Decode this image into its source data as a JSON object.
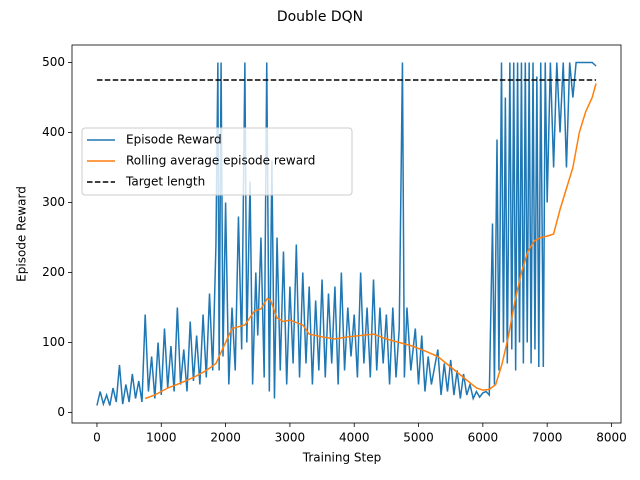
{
  "chart_data": {
    "type": "line",
    "title": "Double DQN",
    "x_label": "Training Step",
    "y_label": "Episode Reward",
    "xlim": [
      -388,
      8148
    ],
    "ylim": [
      -15,
      525
    ],
    "xticks": [
      0,
      1000,
      2000,
      3000,
      4000,
      5000,
      6000,
      7000,
      8000
    ],
    "yticks": [
      0,
      100,
      200,
      300,
      400,
      500
    ],
    "legend": "upper left",
    "series": [
      {
        "name": "Episode Reward",
        "color": "#1f77b4",
        "dash": "solid",
        "x": [
          0,
          50,
          100,
          150,
          200,
          250,
          300,
          350,
          400,
          450,
          500,
          550,
          600,
          650,
          700,
          750,
          800,
          850,
          900,
          950,
          1000,
          1050,
          1100,
          1150,
          1200,
          1250,
          1300,
          1350,
          1400,
          1450,
          1500,
          1550,
          1600,
          1650,
          1700,
          1750,
          1800,
          1850,
          1880,
          1900,
          1930,
          1960,
          2000,
          2050,
          2100,
          2150,
          2200,
          2250,
          2300,
          2330,
          2380,
          2420,
          2470,
          2500,
          2550,
          2600,
          2640,
          2680,
          2720,
          2760,
          2800,
          2850,
          2900,
          2950,
          3000,
          3050,
          3100,
          3150,
          3200,
          3250,
          3300,
          3350,
          3400,
          3450,
          3500,
          3550,
          3600,
          3650,
          3700,
          3750,
          3800,
          3850,
          3900,
          3950,
          4000,
          4050,
          4100,
          4150,
          4200,
          4250,
          4300,
          4350,
          4400,
          4450,
          4500,
          4550,
          4600,
          4650,
          4700,
          4750,
          4780,
          4820,
          4880,
          4950,
          5000,
          5050,
          5100,
          5150,
          5200,
          5300,
          5350,
          5400,
          5450,
          5500,
          5550,
          5600,
          5650,
          5700,
          5750,
          5800,
          5850,
          5900,
          5950,
          6000,
          6050,
          6100,
          6150,
          6180,
          6220,
          6250,
          6290,
          6320,
          6350,
          6380,
          6420,
          6450,
          6480,
          6510,
          6540,
          6570,
          6600,
          6630,
          6660,
          6690,
          6720,
          6750,
          6780,
          6810,
          6840,
          6870,
          6900,
          6940,
          6970,
          7000,
          7050,
          7100,
          7150,
          7200,
          7250,
          7300,
          7350,
          7400,
          7450,
          7500,
          7600,
          7700,
          7760
        ],
        "values": [
          10,
          30,
          12,
          25,
          10,
          35,
          15,
          68,
          12,
          40,
          15,
          55,
          20,
          45,
          15,
          140,
          30,
          80,
          20,
          100,
          25,
          120,
          35,
          95,
          30,
          150,
          40,
          90,
          30,
          130,
          45,
          110,
          40,
          140,
          50,
          170,
          60,
          240,
          500,
          60,
          500,
          80,
          300,
          40,
          150,
          60,
          280,
          90,
          500,
          100,
          330,
          40,
          200,
          110,
          250,
          50,
          500,
          30,
          360,
          20,
          250,
          60,
          230,
          40,
          180,
          70,
          240,
          50,
          200,
          70,
          180,
          40,
          160,
          60,
          190,
          50,
          170,
          70,
          180,
          40,
          200,
          60,
          150,
          80,
          140,
          50,
          200,
          70,
          150,
          50,
          190,
          60,
          150,
          70,
          140,
          40,
          150,
          50,
          120,
          500,
          50,
          150,
          60,
          120,
          40,
          110,
          30,
          80,
          40,
          90,
          25,
          70,
          30,
          75,
          25,
          60,
          20,
          55,
          25,
          40,
          20,
          30,
          22,
          28,
          30,
          25,
          270,
          40,
          390,
          60,
          500,
          100,
          450,
          70,
          500,
          90,
          500,
          60,
          500,
          100,
          500,
          70,
          500,
          100,
          500,
          70,
          500,
          90,
          480,
          65,
          500,
          65,
          500,
          300,
          500,
          350,
          500,
          400,
          500,
          350,
          500,
          450,
          500,
          500,
          500,
          500,
          495
        ]
      },
      {
        "name": "Rolling average episode reward",
        "color": "#ff7f0e",
        "dash": "solid",
        "x": [
          750,
          900,
          1100,
          1300,
          1500,
          1700,
          1850,
          1950,
          2100,
          2300,
          2450,
          2550,
          2650,
          2700,
          2800,
          2900,
          3000,
          3200,
          3300,
          3500,
          3700,
          3900,
          4100,
          4300,
          4500,
          4700,
          4900,
          5100,
          5300,
          5500,
          5700,
          5900,
          6000,
          6100,
          6200,
          6300,
          6400,
          6500,
          6600,
          6700,
          6800,
          6900,
          7000,
          7100,
          7200,
          7300,
          7400,
          7500,
          7600,
          7700,
          7760
        ],
        "values": [
          20,
          25,
          35,
          42,
          50,
          60,
          70,
          90,
          120,
          125,
          145,
          148,
          163,
          160,
          135,
          130,
          132,
          125,
          112,
          108,
          105,
          108,
          110,
          112,
          105,
          100,
          95,
          88,
          80,
          65,
          50,
          35,
          32,
          33,
          40,
          70,
          110,
          160,
          200,
          230,
          245,
          250,
          252,
          255,
          290,
          320,
          350,
          400,
          430,
          450,
          470
        ]
      },
      {
        "name": "Target length",
        "color": "#000000",
        "dash": "dashed",
        "x": [
          0,
          7760
        ],
        "values": [
          475,
          475
        ]
      }
    ]
  }
}
